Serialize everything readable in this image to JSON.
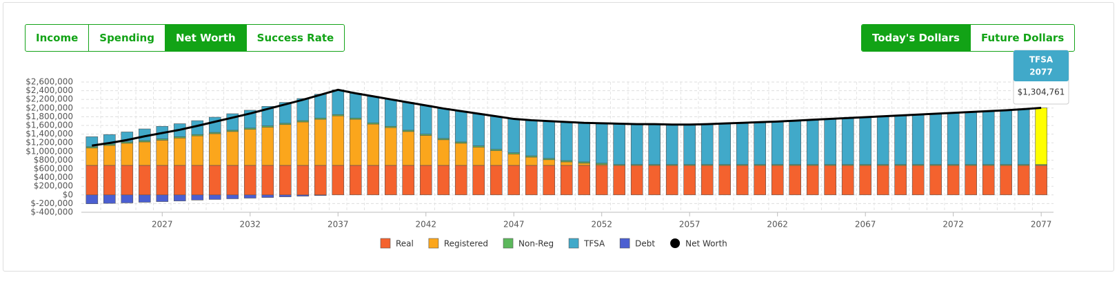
{
  "controls": {
    "views": [
      "Income",
      "Spending",
      "Net Worth",
      "Success Rate"
    ],
    "active_view": 2,
    "dollars": [
      "Today's Dollars",
      "Future Dollars"
    ],
    "active_dollars": 0
  },
  "chart_data": {
    "type": "stacked_bar",
    "x": [
      2023,
      2024,
      2025,
      2026,
      2027,
      2028,
      2029,
      2030,
      2031,
      2032,
      2033,
      2034,
      2035,
      2036,
      2037,
      2038,
      2039,
      2040,
      2041,
      2042,
      2043,
      2044,
      2045,
      2046,
      2047,
      2048,
      2049,
      2050,
      2051,
      2052,
      2053,
      2054,
      2055,
      2056,
      2057,
      2058,
      2059,
      2060,
      2061,
      2062,
      2063,
      2064,
      2065,
      2066,
      2067,
      2068,
      2069,
      2070,
      2071,
      2072,
      2073,
      2074,
      2075,
      2076,
      2077
    ],
    "xlim": [
      2022.4,
      2077.7
    ],
    "xticks": [
      2027,
      2032,
      2037,
      2042,
      2047,
      2052,
      2057,
      2062,
      2067,
      2072,
      2077
    ],
    "ylim": [
      -400000,
      2600000
    ],
    "yticks": [
      {
        "value": -400000,
        "label": "$-400,000"
      },
      {
        "value": -200000,
        "label": "$-200,000"
      },
      {
        "value": 0,
        "label": "$0"
      },
      {
        "value": 200000,
        "label": "$200,000"
      },
      {
        "value": 400000,
        "label": "$400,000"
      },
      {
        "value": 600000,
        "label": "$600,000"
      },
      {
        "value": 800000,
        "label": "$800,000"
      },
      {
        "value": 1000000,
        "label": "$1,000,000"
      },
      {
        "value": 1200000,
        "label": "$1,200,000"
      },
      {
        "value": 1400000,
        "label": "$1,400,000"
      },
      {
        "value": 1600000,
        "label": "$1,600,000"
      },
      {
        "value": 1800000,
        "label": "$1,800,000"
      },
      {
        "value": 2000000,
        "label": "$2,000,000"
      },
      {
        "value": 2200000,
        "label": "$2,200,000"
      },
      {
        "value": 2400000,
        "label": "$2,400,000"
      },
      {
        "value": 2600000,
        "label": "$2,600,000"
      }
    ],
    "grid": true,
    "series": [
      {
        "name": "Real",
        "color": "#f4622e",
        "values": [
          680000,
          680000,
          680000,
          680000,
          680000,
          680000,
          680000,
          680000,
          680000,
          680000,
          680000,
          680000,
          680000,
          680000,
          680000,
          680000,
          680000,
          680000,
          680000,
          680000,
          680000,
          680000,
          680000,
          680000,
          680000,
          680000,
          680000,
          680000,
          680000,
          680000,
          680000,
          680000,
          680000,
          680000,
          680000,
          680000,
          680000,
          680000,
          680000,
          680000,
          680000,
          680000,
          680000,
          680000,
          680000,
          680000,
          680000,
          680000,
          680000,
          680000,
          680000,
          680000,
          680000,
          680000,
          680000
        ]
      },
      {
        "name": "Registered",
        "color": "#fba61c",
        "values": [
          400000,
          460000,
          510000,
          540000,
          580000,
          630000,
          680000,
          730000,
          780000,
          830000,
          880000,
          940000,
          1000000,
          1060000,
          1140000,
          1060000,
          950000,
          870000,
          780000,
          690000,
          590000,
          510000,
          420000,
          340000,
          260000,
          190000,
          130000,
          80000,
          50000,
          20000,
          0,
          0,
          0,
          0,
          0,
          0,
          0,
          0,
          0,
          0,
          0,
          0,
          0,
          0,
          0,
          0,
          0,
          0,
          0,
          0,
          0,
          0,
          0,
          0,
          0
        ]
      },
      {
        "name": "Non-Reg",
        "color": "#5cb85c",
        "values": [
          30000,
          30000,
          30000,
          30000,
          30000,
          30000,
          30000,
          30000,
          30000,
          30000,
          30000,
          30000,
          30000,
          30000,
          30000,
          30000,
          30000,
          30000,
          30000,
          30000,
          30000,
          30000,
          30000,
          30000,
          30000,
          30000,
          30000,
          30000,
          30000,
          30000,
          20000,
          20000,
          20000,
          20000,
          20000,
          20000,
          20000,
          20000,
          20000,
          20000,
          20000,
          20000,
          20000,
          20000,
          20000,
          20000,
          20000,
          20000,
          20000,
          20000,
          20000,
          20000,
          20000,
          20000,
          20000
        ]
      },
      {
        "name": "TFSA",
        "color": "#41a9c9",
        "values": [
          230000,
          220000,
          230000,
          270000,
          290000,
          300000,
          320000,
          350000,
          380000,
          410000,
          450000,
          480000,
          510000,
          550000,
          570000,
          570000,
          610000,
          620000,
          640000,
          660000,
          690000,
          710000,
          740000,
          760000,
          780000,
          820000,
          860000,
          890000,
          900000,
          920000,
          940000,
          930000,
          930000,
          920000,
          920000,
          930000,
          945000,
          960000,
          975000,
          990000,
          1010000,
          1030000,
          1050000,
          1070000,
          1090000,
          1110000,
          1130000,
          1150000,
          1170000,
          1190000,
          1210000,
          1230000,
          1250000,
          1275000,
          1304761
        ]
      },
      {
        "name": "Debt",
        "color": "#4b5fd1",
        "values": [
          -205000,
          -195000,
          -185000,
          -170000,
          -155000,
          -140000,
          -120000,
          -105000,
          -90000,
          -75000,
          -60000,
          -45000,
          -30000,
          -15000,
          0,
          0,
          0,
          0,
          0,
          0,
          0,
          0,
          0,
          0,
          0,
          0,
          0,
          0,
          0,
          0,
          0,
          0,
          0,
          0,
          0,
          0,
          0,
          0,
          0,
          0,
          0,
          0,
          0,
          0,
          0,
          0,
          0,
          0,
          0,
          0,
          0,
          0,
          0,
          0,
          0
        ]
      },
      {
        "name": "Net Worth",
        "color": "#000000",
        "type": "line",
        "values": [
          1135000,
          1195000,
          1265000,
          1350000,
          1425000,
          1500000,
          1590000,
          1685000,
          1780000,
          1875000,
          1980000,
          2085000,
          2190000,
          2305000,
          2420000,
          2340000,
          2270000,
          2200000,
          2130000,
          2060000,
          1990000,
          1930000,
          1870000,
          1810000,
          1750000,
          1720000,
          1700000,
          1680000,
          1660000,
          1650000,
          1640000,
          1630000,
          1630000,
          1620000,
          1620000,
          1630000,
          1645000,
          1660000,
          1675000,
          1690000,
          1710000,
          1730000,
          1750000,
          1770000,
          1790000,
          1810000,
          1830000,
          1850000,
          1870000,
          1890000,
          1910000,
          1930000,
          1950000,
          1975000,
          2004761
        ]
      }
    ],
    "tooltip": {
      "title": "TFSA",
      "year": "2077",
      "value": "$1,304,761",
      "highlight": "#ffff00"
    }
  }
}
